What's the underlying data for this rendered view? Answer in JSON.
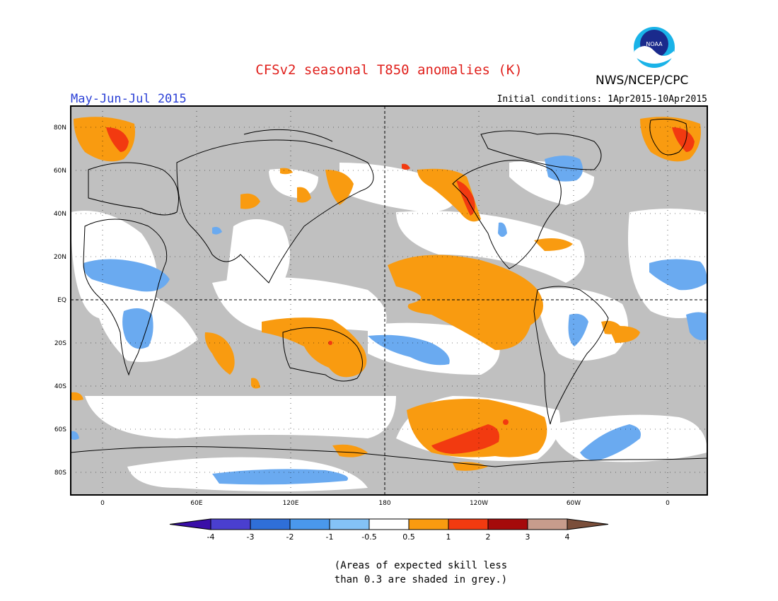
{
  "title": "CFSv2 seasonal T850 anomalies (K)",
  "season": "May-Jun-Jul 2015",
  "agency": "NWS/NCEP/CPC",
  "logo_text": "NOAA",
  "initial_conditions": "Initial conditions: 1Apr2015-10Apr2015",
  "lat_labels": [
    "80N",
    "60N",
    "40N",
    "20N",
    "EQ",
    "20S",
    "40S",
    "60S",
    "80S"
  ],
  "lon_labels": [
    "0",
    "60E",
    "120E",
    "180",
    "120W",
    "60W",
    "0"
  ],
  "colorbar": {
    "colors": [
      "#3a0fa8",
      "#4a3fcf",
      "#2f6fd8",
      "#4a98ec",
      "#84c2f6",
      "#ffffff",
      "#f99b10",
      "#f23a10",
      "#a50a0a",
      "#c79c8c",
      "#7a4e3a"
    ],
    "labels": [
      "-4",
      "-3",
      "-2",
      "-1",
      "-0.5",
      "0.5",
      "1",
      "2",
      "3",
      "4"
    ]
  },
  "note_line1": "(Areas of expected skill less",
  "note_line2": "than 0.3 are shaded in grey.)",
  "colors": {
    "skill_grey": "#c0c0c0",
    "positive": "#f99b10",
    "strong_positive": "#f23a10",
    "negative": "#6aaaf0"
  }
}
